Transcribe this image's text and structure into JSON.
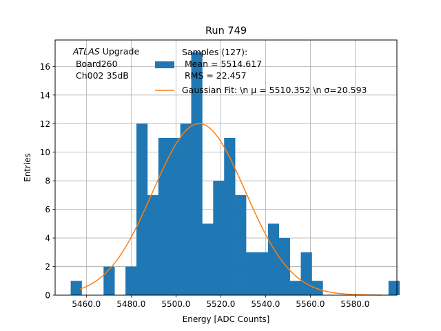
{
  "chart_data": {
    "type": "bar",
    "title": "Run 749",
    "xlabel": "Energy [ADC Counts]",
    "ylabel": "Entries",
    "xlim": [
      5446.05,
      5598.65
    ],
    "ylim": [
      0,
      17.85
    ],
    "grid": true,
    "x_ticks": [
      5460,
      5480,
      5500,
      5520,
      5540,
      5560,
      5580
    ],
    "x_tick_labels": [
      "5460.0",
      "5480.0",
      "5500.0",
      "5520.0",
      "5540.0",
      "5560.0",
      "5580.0"
    ],
    "y_ticks": [
      0,
      2,
      4,
      6,
      8,
      10,
      12,
      14,
      16
    ],
    "y_tick_labels": [
      "0",
      "2",
      "4",
      "6",
      "8",
      "10",
      "12",
      "14",
      "16"
    ],
    "bins": {
      "start": 5453.0,
      "width": 4.893,
      "counts": [
        1,
        0,
        0,
        2,
        0,
        2,
        12,
        7,
        11,
        11,
        12,
        17,
        5,
        8,
        11,
        7,
        3,
        3,
        5,
        4,
        1,
        3,
        1,
        0,
        0,
        0,
        0,
        0,
        0,
        1
      ]
    },
    "bar_color": "#1f77b4",
    "fit": {
      "type": "gaussian",
      "mu": 5510.352,
      "sigma": 20.593,
      "amplitude": 12.0,
      "x_range": [
        5457.0,
        5592.0
      ],
      "color": "#ff7f0e"
    },
    "annotation_lines": [
      "ATLAS Upgrade",
      " Board260",
      " Ch002 35dB"
    ],
    "legend": {
      "placement": "top-right",
      "entries": [
        {
          "label_lines": [
            "Samples (127):",
            " Mean = 5514.617",
            " RMS = 22.457"
          ],
          "kind": "bar",
          "color": "#1f77b4"
        },
        {
          "label_lines": [
            "Gaussian Fit: \\n μ = 5510.352 \\n σ=20.593"
          ],
          "kind": "line",
          "color": "#ff7f0e"
        }
      ]
    }
  }
}
